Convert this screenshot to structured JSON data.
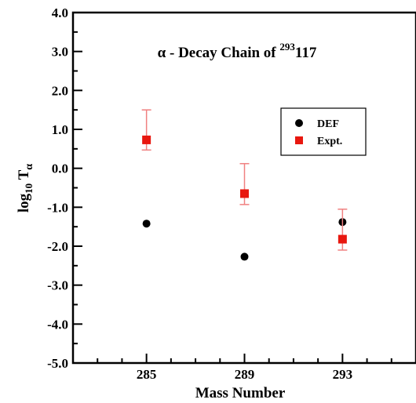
{
  "chart_data": {
    "type": "scatter",
    "title_prefix": "α - Decay Chain of ",
    "title_sup": "293",
    "title_suffix": "117",
    "xlabel": "Mass Number",
    "ylabel_main": "log",
    "ylabel_sub": "10",
    "ylabel_T": " T",
    "ylabel_alpha": "α",
    "xlim": [
      282,
      296
    ],
    "ylim": [
      -5,
      4
    ],
    "x_ticks": [
      285,
      289,
      293
    ],
    "x_tick_labels": [
      "285",
      "289",
      "293"
    ],
    "y_ticks": [
      -5,
      -4,
      -3,
      -2,
      -1,
      0,
      1,
      2,
      3,
      4
    ],
    "y_tick_labels": [
      "-5.0",
      "-4.0",
      "-3.0",
      "-2.0",
      "-1.0",
      "0.0",
      "1.0",
      "2.0",
      "3.0",
      "4.0"
    ],
    "legend_position": "top-right",
    "series": [
      {
        "name": "DEF",
        "marker": "circle",
        "color": "#000000",
        "x": [
          285,
          289,
          293
        ],
        "y": [
          -1.42,
          -2.27,
          -1.38
        ]
      },
      {
        "name": "Expt.",
        "marker": "square",
        "color": "#e8170f",
        "error_color": "#f08080",
        "x": [
          285,
          289,
          293
        ],
        "y": [
          0.73,
          -0.65,
          -1.82
        ],
        "err_low": [
          0.47,
          -0.93,
          -2.1
        ],
        "err_high": [
          1.5,
          0.12,
          -1.05
        ]
      }
    ]
  }
}
